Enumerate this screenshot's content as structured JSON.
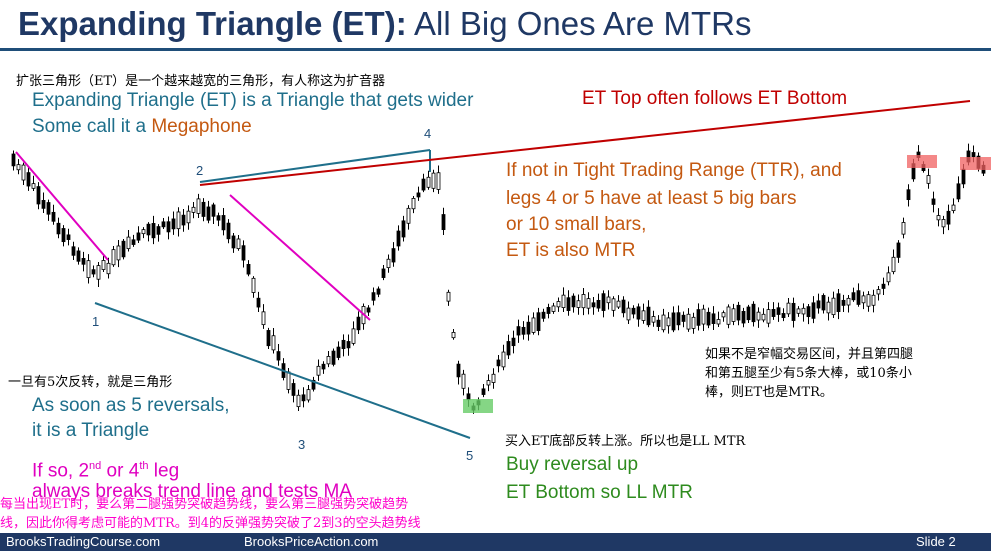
{
  "title": {
    "bold": "Expanding Triangle (ET):",
    "rest": " All Big Ones Are MTRs"
  },
  "notes": {
    "cn_top": "扩张三角形（ET）是一个越来越宽的三角形，有人称这为扩音器",
    "et_line1": "Expanding Triangle (ET) is a Triangle that gets wider",
    "et_line2_prefix": "Some call it a ",
    "et_line2_word": "Megaphone",
    "et_top": "ET Top often follows ET Bottom",
    "ttr_1": "If not in Tight Trading Range (TTR), and",
    "ttr_2": "legs 4 or 5 have at least 5 big bars",
    "ttr_3": "or 10 small bars,",
    "ttr_4": "ET is also MTR",
    "cn_ttr_1": "如果不是窄幅交易区间，并且第四腿",
    "cn_ttr_2": "和第五腿至少有5条大棒，或10条小",
    "cn_ttr_3": "棒，则ET也是MTR。",
    "cn_reversals": "一旦有5次反转，就是三角形",
    "reversals_1": "As soon as 5 reversals,",
    "reversals_2": "it is a Triangle",
    "leg_prefix": "If so, 2",
    "leg_sup1": "nd",
    "leg_mid": " or 4",
    "leg_sup2": "th",
    "leg_suffix": " leg",
    "leg_line2": "always breaks trend line and tests MA",
    "cn_buy": "买入ET底部反转上涨。所以也是LL MTR",
    "buy_1": "Buy reversal up",
    "buy_2": "ET Bottom so LL MTR",
    "cn_bottom_1": "每当出现ET时，要么第二腿强势突破趋势线，要么第三腿强势突破趋势",
    "cn_bottom_2": "线，因此你得考虑可能的MTR。到4的反弹强势突破了2到3的空头趋势线"
  },
  "leg_labels": [
    "1",
    "2",
    "3",
    "4",
    "5"
  ],
  "footer": {
    "left": "BrooksTradingCourse.com",
    "center": "BrooksPriceAction.com",
    "right": "Slide  2"
  },
  "colors": {
    "title": "#1f3864",
    "blue_text": "#1f6f8b",
    "orange_text": "#c45911",
    "red_line": "#c00000",
    "magenta": "#e000c0",
    "green": "#2e8b1e",
    "candle": "#000000"
  }
}
